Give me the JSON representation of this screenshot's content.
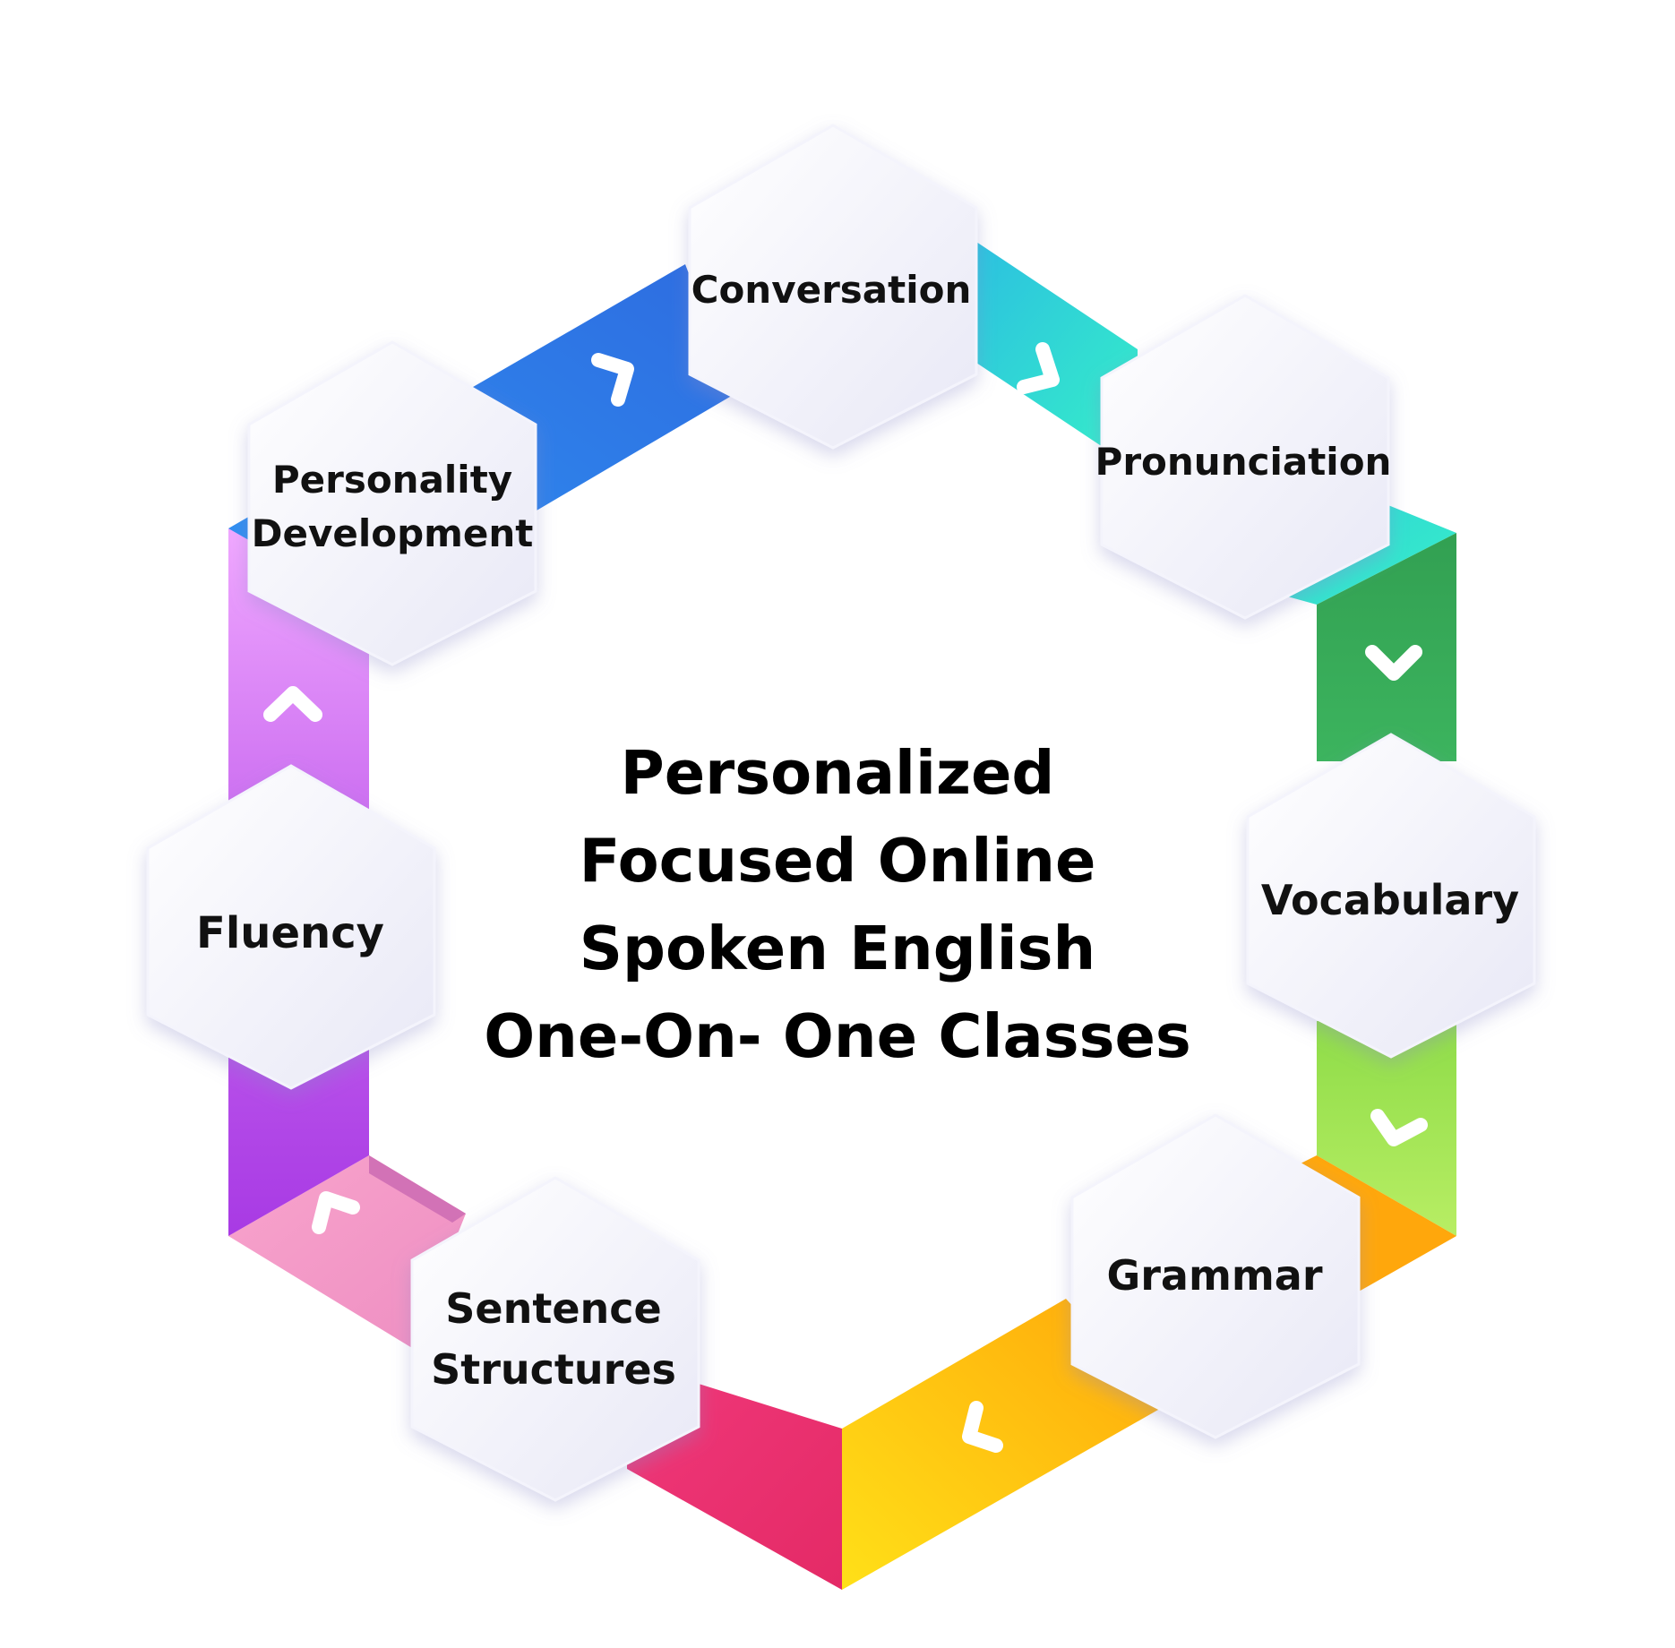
{
  "diagram": {
    "title_lines": [
      "Personalized",
      "Focused Online",
      "Spoken English",
      "One-On- One Classes"
    ],
    "nodes": [
      {
        "id": "conversation",
        "lines": [
          "Conversation"
        ]
      },
      {
        "id": "pronunciation",
        "lines": [
          "Pronunciation"
        ]
      },
      {
        "id": "vocabulary",
        "lines": [
          "Vocabulary"
        ]
      },
      {
        "id": "grammar",
        "lines": [
          "Grammar"
        ]
      },
      {
        "id": "sentence-structures",
        "lines": [
          "Sentence",
          "Structures"
        ]
      },
      {
        "id": "fluency",
        "lines": [
          "Fluency"
        ]
      },
      {
        "id": "personality-development",
        "lines": [
          "Personality",
          "Development"
        ]
      }
    ],
    "connector_colors": {
      "conversation_to_pronunciation": [
        "#2ec6dc",
        "#33e0cc"
      ],
      "pronunciation_to_vocabulary": [
        "#2fa84f",
        "#3bb45a"
      ],
      "vocabulary_to_grammar": [
        "#9fe050",
        "#b5ea62"
      ],
      "grammar_to_sentence": [
        "#ffd314",
        "#ffa50a"
      ],
      "sentence_to_bottom": [
        "#e8306e",
        "#f24a86"
      ],
      "sentence_to_fluency": [
        "#f79ac8",
        "#d56fb6"
      ],
      "fluency_to_personality": [
        "#ae3be8",
        "#eaa4ff"
      ],
      "personality_to_conversation": [
        "#2f6fe0",
        "#2f90f0"
      ]
    },
    "arrow_icon": "chevron-arrow-icon"
  }
}
